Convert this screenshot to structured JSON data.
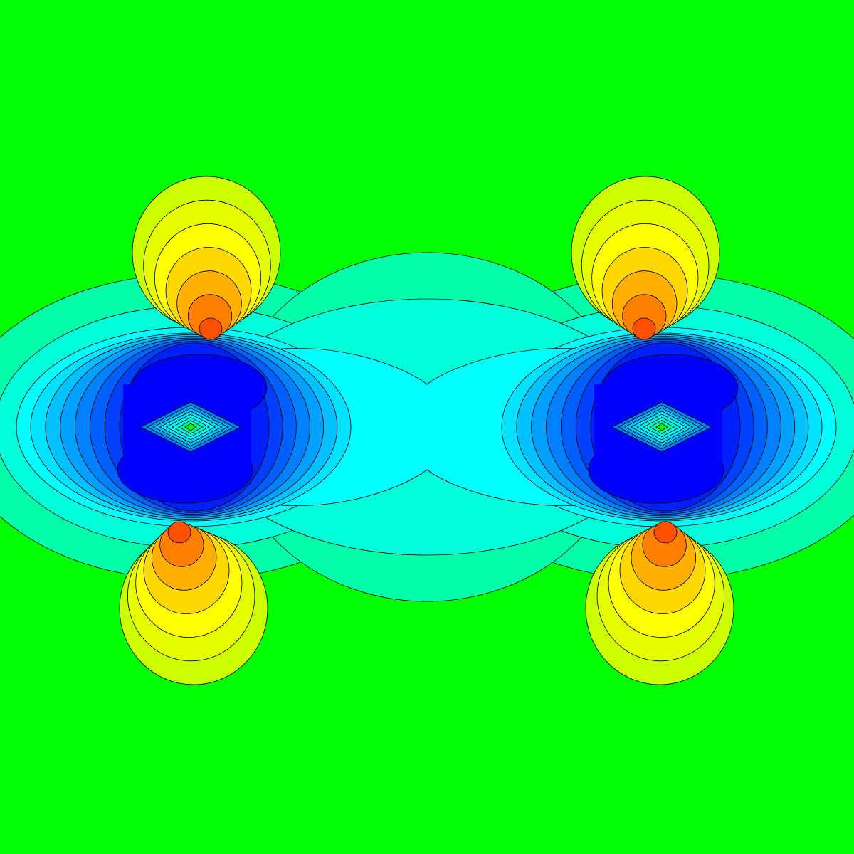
{
  "chart_data": {
    "type": "contour",
    "colormap": [
      "#0000ff",
      "#0020ff",
      "#0040ff",
      "#0060ff",
      "#0080ff",
      "#00a0ff",
      "#00c0ff",
      "#00e0ff",
      "#00ffff",
      "#00ffd8",
      "#00ffa8",
      "#00ff00",
      "#ccff00",
      "#e6ff00",
      "#ffff00",
      "#ffd800",
      "#ffb000",
      "#ff8000",
      "#ff5000"
    ],
    "background_level": 11
  }
}
